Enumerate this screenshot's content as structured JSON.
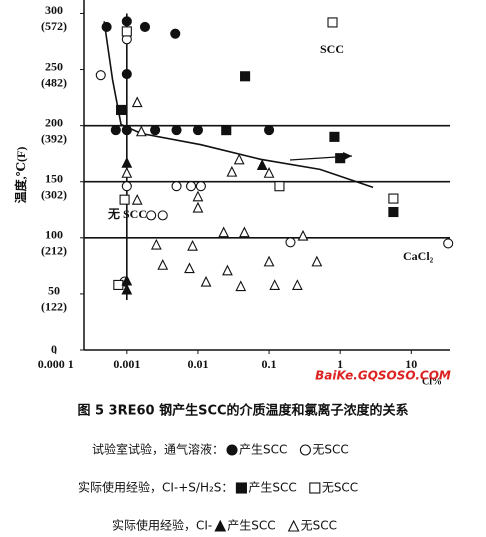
{
  "chart_data": {
    "type": "scatter",
    "title": "图 5 3RE60 钢产生SCC的介质温度和氯离子浓度的关系",
    "y_label": "温度,℃(F)",
    "x_label": "Cl%",
    "watermark": "BaiKe.GQSOSO.COM",
    "annotations": [
      "SCC",
      "无 SCC",
      "CaCl₂"
    ],
    "xscale": "log",
    "xlim": [
      0.00025,
      35
    ],
    "ylim": [
      0,
      312
    ],
    "xticks": [
      {
        "value": 0.0001,
        "label": "0.000 1"
      },
      0.001,
      0.01,
      0.1,
      1,
      10
    ],
    "yticks": [
      {
        "value": 300,
        "label": "300",
        "label_f": "(572)"
      },
      {
        "value": 250,
        "label": "250",
        "label_f": "(482)"
      },
      {
        "value": 200,
        "label": "200",
        "label_f": "(392)"
      },
      {
        "value": 150,
        "label": "150",
        "label_f": "(302)"
      },
      {
        "value": 100,
        "label": "100",
        "label_f": "(212)"
      },
      {
        "value": 50,
        "label": "50",
        "label_f": "(122)"
      },
      0
    ],
    "hlines": [
      200,
      150,
      100
    ],
    "vlines": [
      0.001
    ],
    "caption_lines": [
      "试验室试验，通气溶液：",
      "实际使用经验，CI-+S/H₂S：",
      "实际使用经验，CI-"
    ],
    "boundary": {
      "x": [
        0.00048,
        0.00063,
        0.00083,
        0.0016,
        0.011,
        0.076,
        0.52,
        2.9
      ],
      "values": [
        293,
        241,
        201,
        193,
        183,
        170,
        161,
        145
      ]
    },
    "series": [
      {
        "name": "产生SCC",
        "marker": "circle",
        "filled": true,
        "color": "#111",
        "x": [
          0.00052,
          0.001,
          0.0018,
          0.0048,
          0.001,
          0.0007,
          0.001,
          0.0025,
          0.005,
          0.01,
          0.1
        ],
        "values": [
          288,
          293,
          288,
          282,
          246,
          196,
          196,
          196,
          196,
          196,
          196
        ]
      },
      {
        "name": "无SCC",
        "marker": "circle",
        "filled": false,
        "color": "#111",
        "x": [
          0.00043,
          0.001,
          0.001,
          0.005,
          0.008,
          0.011,
          0.00093,
          0.0022,
          0.0032,
          0.2,
          33
        ],
        "values": [
          245,
          277,
          146,
          146,
          146,
          146,
          61,
          120,
          120,
          96,
          95
        ]
      },
      {
        "name": "产生SCC",
        "marker": "square",
        "filled": true,
        "color": "#111",
        "x": [
          0.00083,
          0.046,
          0.025,
          0.83,
          1,
          5.6
        ],
        "values": [
          214,
          244,
          196,
          190,
          171,
          123
        ]
      },
      {
        "name": "无SCC",
        "marker": "square",
        "filled": false,
        "color": "#111",
        "x": [
          0.78,
          0.001,
          0.00093,
          0.14,
          5.6,
          0.00076
        ],
        "values": [
          292,
          284,
          134,
          146,
          135,
          58
        ]
      },
      {
        "name": "产生SCC",
        "marker": "triangle",
        "filled": true,
        "color": "#111",
        "x": [
          0.001,
          0.08,
          0.001,
          0.001
        ],
        "values": [
          167,
          165,
          62,
          54
        ]
      },
      {
        "name": "无SCC",
        "marker": "triangle",
        "filled": false,
        "color": "#111",
        "x": [
          0.0016,
          0.0014,
          0.001,
          0.0014,
          0.01,
          0.01,
          0.0026,
          0.0032,
          0.0076,
          0.0084,
          0.013,
          0.023,
          0.045,
          0.026,
          0.04,
          0.1,
          0.12,
          0.25,
          0.3,
          0.47,
          0.03,
          0.038,
          0.1
        ],
        "values": [
          195,
          221,
          158,
          134,
          137,
          127,
          94,
          76,
          73,
          93,
          61,
          105,
          105,
          71,
          57,
          79,
          58,
          58,
          102,
          79,
          159,
          170,
          158
        ]
      }
    ]
  }
}
